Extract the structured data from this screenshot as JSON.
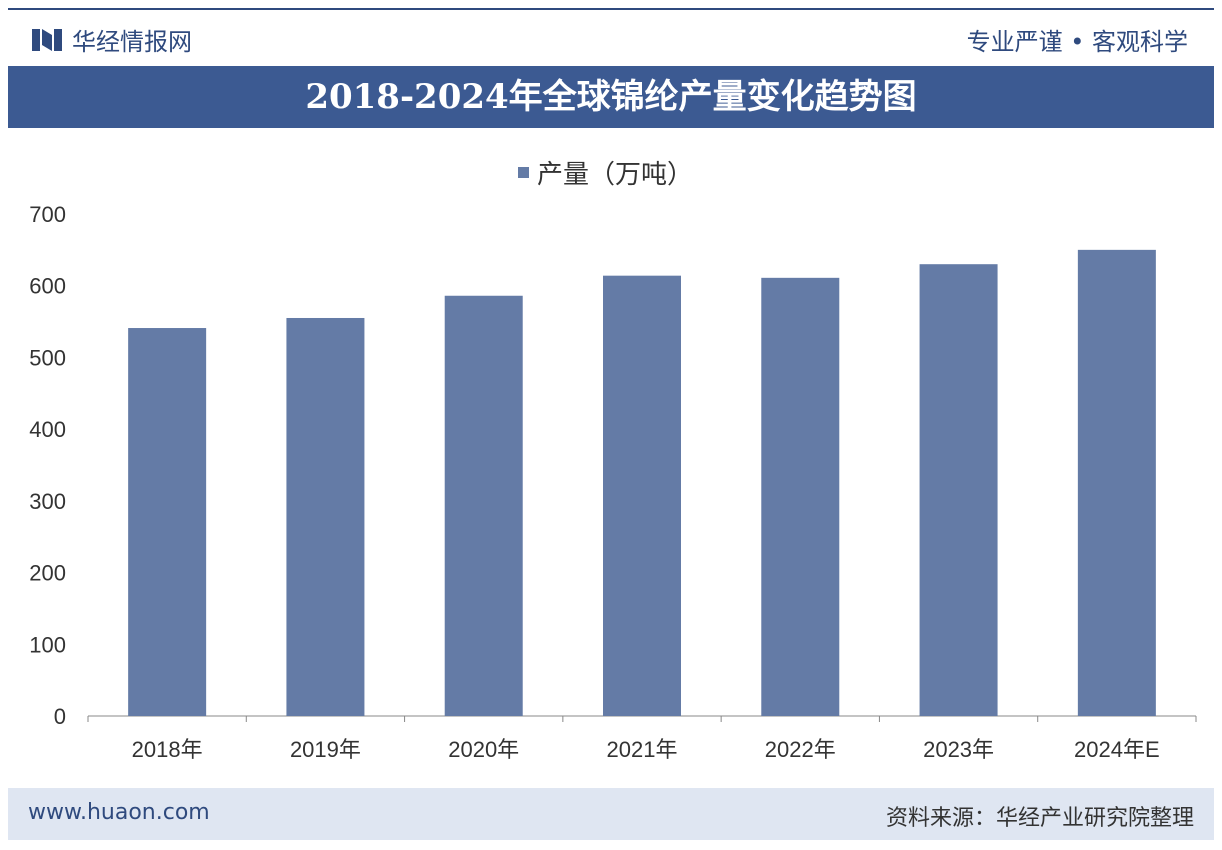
{
  "header": {
    "brand": "华经情报网",
    "slogan": "专业严谨 • 客观科学"
  },
  "footer": {
    "website": "www.huaon.com",
    "source": "资料来源：华经产业研究院整理"
  },
  "watermark": "华经产业研究院 www.huaon.com",
  "colors": {
    "bar": "#647ba6",
    "title_bg": "#3c5a92",
    "brand": "#2f4a7e"
  },
  "chart_data": {
    "type": "bar",
    "title": "2018-2024年全球锦纶产量变化趋势图",
    "categories": [
      "2018年",
      "2019年",
      "2020年",
      "2021年",
      "2022年",
      "2023年",
      "2024年E"
    ],
    "series": [
      {
        "name": "产量（万吨）",
        "values": [
          541,
          555,
          586,
          614,
          611,
          630,
          650
        ]
      }
    ],
    "legend": "top-center",
    "ylim": [
      0,
      700
    ],
    "yticks": [
      0,
      100,
      200,
      300,
      400,
      500,
      600,
      700
    ],
    "grid": false
  }
}
